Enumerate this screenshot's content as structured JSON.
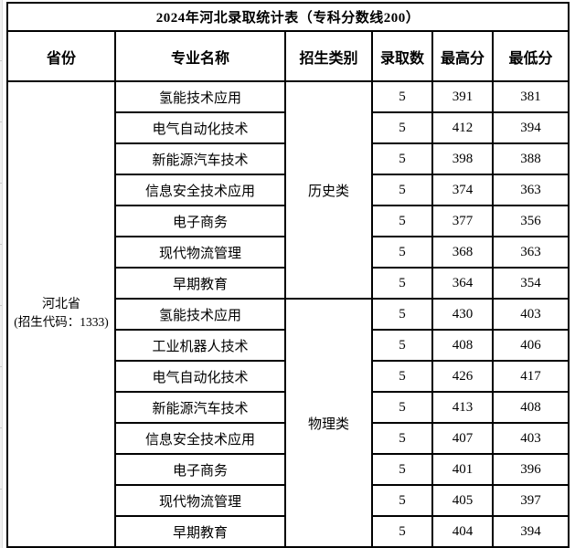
{
  "title": "2024年河北录取统计表（专科分数线200）",
  "table": {
    "headers": [
      "省份",
      "专业名称",
      "招生类别",
      "录取数",
      "最高分",
      "最低分"
    ],
    "province": {
      "name": "河北省",
      "code_line": "(招生代码：1333)"
    },
    "groups": [
      {
        "category": "历史类",
        "rows": [
          {
            "major": "氢能技术应用",
            "count": "5",
            "max": "391",
            "min": "381"
          },
          {
            "major": "电气自动化技术",
            "count": "5",
            "max": "412",
            "min": "394"
          },
          {
            "major": "新能源汽车技术",
            "count": "5",
            "max": "398",
            "min": "388"
          },
          {
            "major": "信息安全技术应用",
            "count": "5",
            "max": "374",
            "min": "363"
          },
          {
            "major": "电子商务",
            "count": "5",
            "max": "377",
            "min": "356"
          },
          {
            "major": "现代物流管理",
            "count": "5",
            "max": "368",
            "min": "363"
          },
          {
            "major": "早期教育",
            "count": "5",
            "max": "364",
            "min": "354"
          }
        ]
      },
      {
        "category": "物理类",
        "rows": [
          {
            "major": "氢能技术应用",
            "count": "5",
            "max": "430",
            "min": "403"
          },
          {
            "major": "工业机器人技术",
            "count": "5",
            "max": "408",
            "min": "406"
          },
          {
            "major": "电气自动化技术",
            "count": "5",
            "max": "426",
            "min": "417"
          },
          {
            "major": "新能源汽车技术",
            "count": "5",
            "max": "413",
            "min": "408"
          },
          {
            "major": "信息安全技术应用",
            "count": "5",
            "max": "407",
            "min": "403"
          },
          {
            "major": "电子商务",
            "count": "5",
            "max": "401",
            "min": "396"
          },
          {
            "major": "现代物流管理",
            "count": "5",
            "max": "405",
            "min": "397"
          },
          {
            "major": "早期教育",
            "count": "5",
            "max": "404",
            "min": "394"
          }
        ]
      }
    ]
  },
  "colors": {
    "border": "#000000",
    "background": "#ffffff",
    "text": "#000000",
    "gutter": "#f1f1f1",
    "gridline": "#c9c9c9"
  }
}
